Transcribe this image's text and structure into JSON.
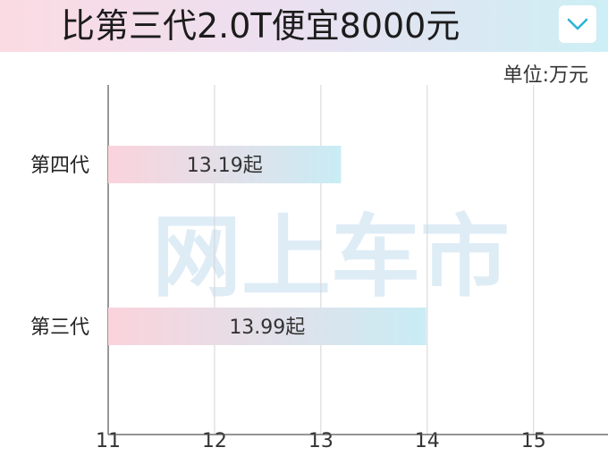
{
  "title": "比第三代2.0T便宜8000元",
  "unit_label": "单位:万元",
  "icons": {
    "dropdown": "chevron-down-icon"
  },
  "colors": {
    "title_gradient_start": "#fbdbe3",
    "title_gradient_end": "#cdeff5",
    "bar_gradient_start": "#fbd3dc",
    "bar_gradient_end": "#c9ecf5",
    "chevron": "#2bb5d6",
    "grid": "#d4d4d4",
    "watermark": "#d3e6f3"
  },
  "watermark": "网上车市",
  "chart_data": {
    "type": "bar",
    "orientation": "horizontal",
    "categories": [
      "第四代",
      "第三代"
    ],
    "values": [
      13.19,
      13.99
    ],
    "data_labels": [
      "13.19起",
      "13.99起"
    ],
    "xlim": [
      11,
      15.7
    ],
    "xticks": [
      11,
      12,
      13,
      14,
      15
    ],
    "xtick_labels": [
      "11",
      "12",
      "13",
      "14",
      "15"
    ],
    "grid": true
  }
}
